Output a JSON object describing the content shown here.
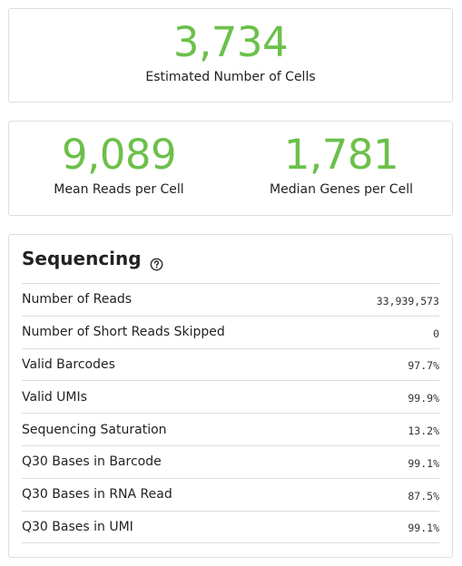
{
  "summary": {
    "cells": {
      "value": "3,734",
      "label": "Estimated Number of Cells"
    },
    "metrics": [
      {
        "value": "9,089",
        "label": "Mean Reads per Cell"
      },
      {
        "value": "1,781",
        "label": "Median Genes per Cell"
      }
    ]
  },
  "sequencing": {
    "title": "Sequencing",
    "help_icon": "question-circle-icon",
    "rows": [
      {
        "label": "Number of Reads",
        "value": "33,939,573"
      },
      {
        "label": "Number of Short Reads Skipped",
        "value": "0"
      },
      {
        "label": "Valid Barcodes",
        "value": "97.7%"
      },
      {
        "label": "Valid UMIs",
        "value": "99.9%"
      },
      {
        "label": "Sequencing Saturation",
        "value": "13.2%"
      },
      {
        "label": "Q30 Bases in Barcode",
        "value": "99.1%"
      },
      {
        "label": "Q30 Bases in RNA Read",
        "value": "87.5%"
      },
      {
        "label": "Q30 Bases in UMI",
        "value": "99.1%"
      }
    ]
  },
  "colors": {
    "accent": "#6cc04a",
    "border": "#dedede"
  }
}
